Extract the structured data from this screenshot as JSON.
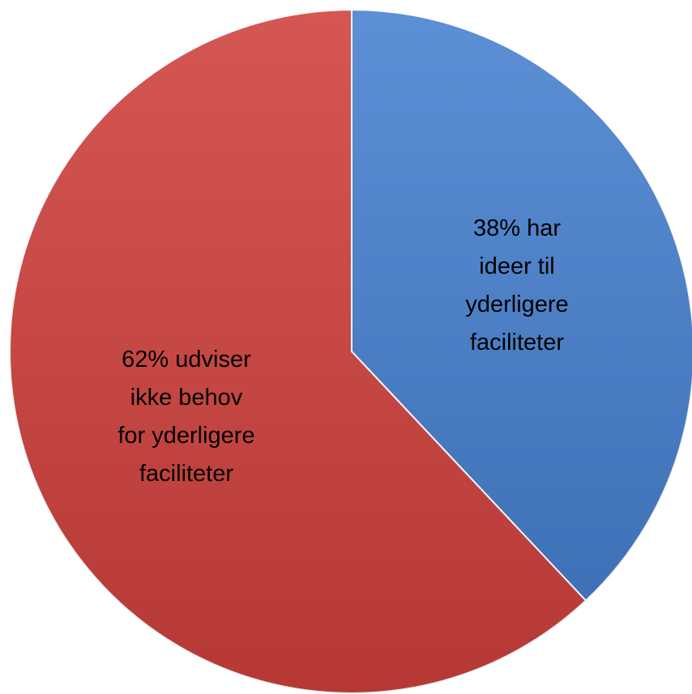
{
  "chart_data": {
    "type": "pie",
    "values": [
      38,
      62
    ],
    "value_labels": [
      "38% har ideer til yderligere faciliteter",
      "62% udviser ikke behov for yderligere faciliteter"
    ],
    "colors": [
      "#4680cf",
      "#cf403c"
    ]
  }
}
